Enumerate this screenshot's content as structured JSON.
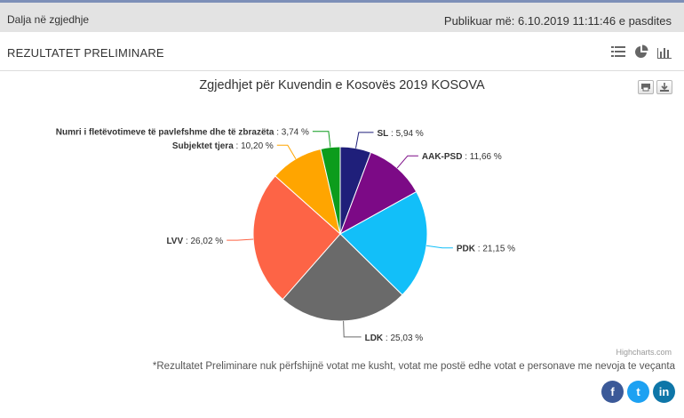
{
  "header": {
    "back_link": "Dalja në zgjedhje",
    "published": "Publikuar më: 6.10.2019 11:11:46 e pasdites"
  },
  "section": {
    "title": "REZULTATET PRELIMINARE",
    "view_icons": [
      "list-icon",
      "pie-icon",
      "bar-chart-icon"
    ]
  },
  "chart_data": {
    "type": "pie",
    "title": "Zgjedhjet për Kuvendin e Kosovës 2019 KOSOVA",
    "slices": [
      {
        "name": "SL",
        "value": 5.94,
        "label": "5,94 %",
        "color": "#1f1f7a"
      },
      {
        "name": "AAK-PSD",
        "value": 11.66,
        "label": "11,66 %",
        "color": "#7c0a86"
      },
      {
        "name": "PDK",
        "value": 21.15,
        "label": "21,15 %",
        "color": "#12bff9"
      },
      {
        "name": "LDK",
        "value": 25.03,
        "label": "25,03 %",
        "color": "#6a6a6a"
      },
      {
        "name": "LVV",
        "value": 26.02,
        "label": "26,02 %",
        "color": "#fd6446"
      },
      {
        "name": "Subjektet tjera",
        "value": 10.2,
        "label": "10,20 %",
        "color": "#ffa500"
      },
      {
        "name": "Numri i fletëvotimeve të pavlefshme dhe të zbrazëta",
        "value": 3.74,
        "label": "3,74 %",
        "color": "#0c9c1c"
      }
    ]
  },
  "credits": "Highcharts.com",
  "footnote": "*Rezultatet Preliminare nuk përfshijnë votat me kusht, votat me postë edhe votat e personave me nevoja te veçanta",
  "social": {
    "facebook": "f",
    "twitter": "t",
    "linkedin": "in"
  }
}
